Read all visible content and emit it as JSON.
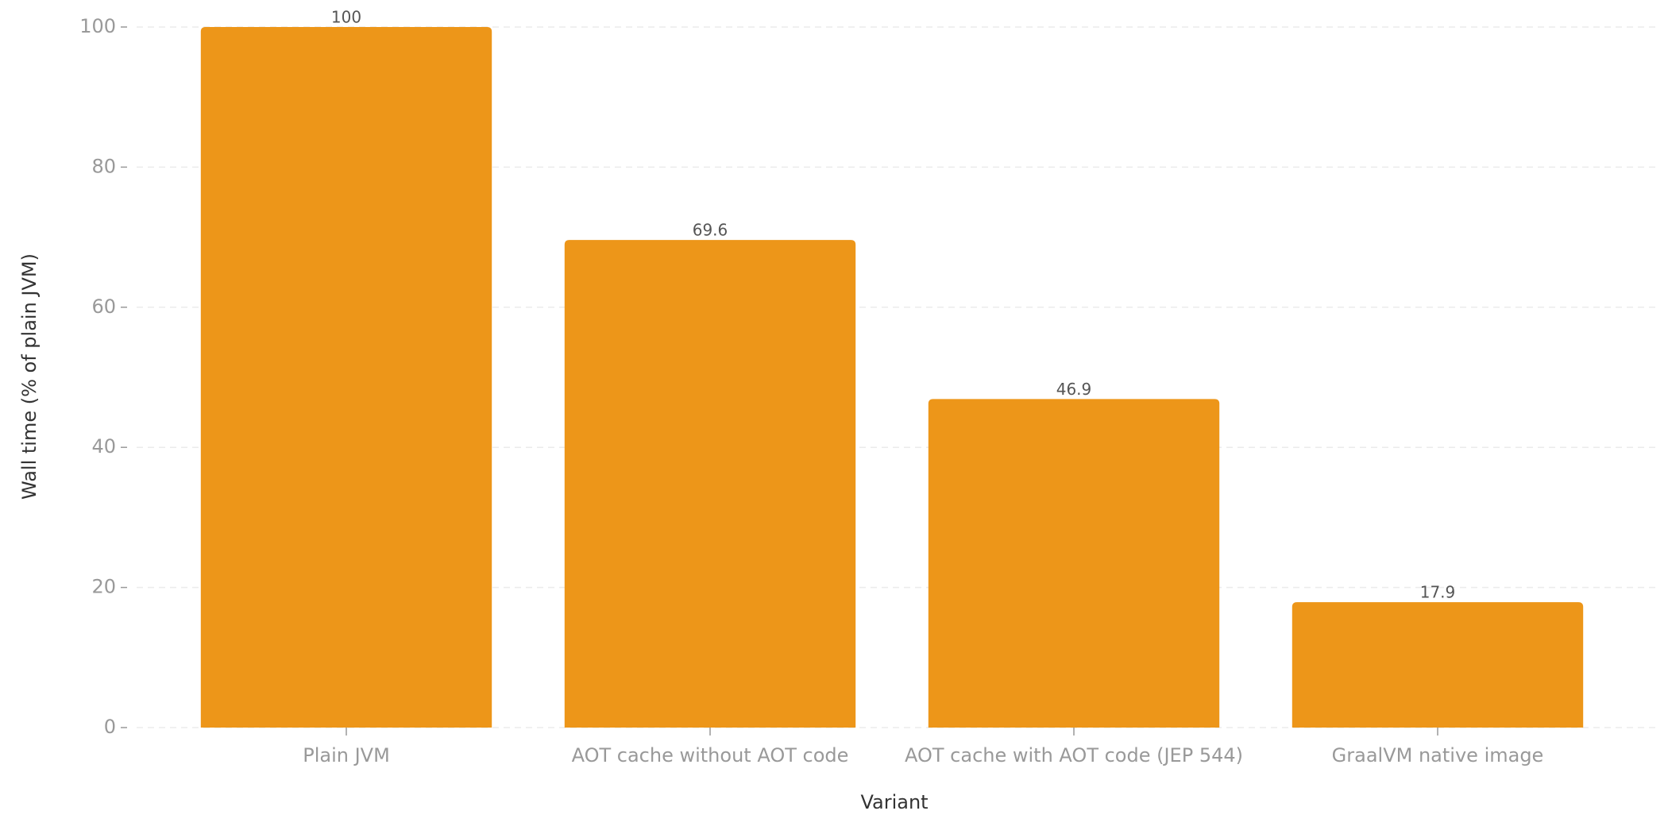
{
  "chart_data": {
    "type": "bar",
    "x_label": "Variant",
    "y_label": "Wall time (% of plain JVM)",
    "categories": [
      "Plain JVM",
      "AOT cache without AOT code",
      "AOT cache with AOT code (JEP 544)",
      "GraalVM native image"
    ],
    "values": [
      100,
      69.6,
      46.9,
      17.9
    ],
    "color": "#ed9619",
    "ylim": [
      0,
      100
    ],
    "yticks": [
      0,
      20,
      40,
      60,
      80,
      100
    ],
    "grid": true
  }
}
